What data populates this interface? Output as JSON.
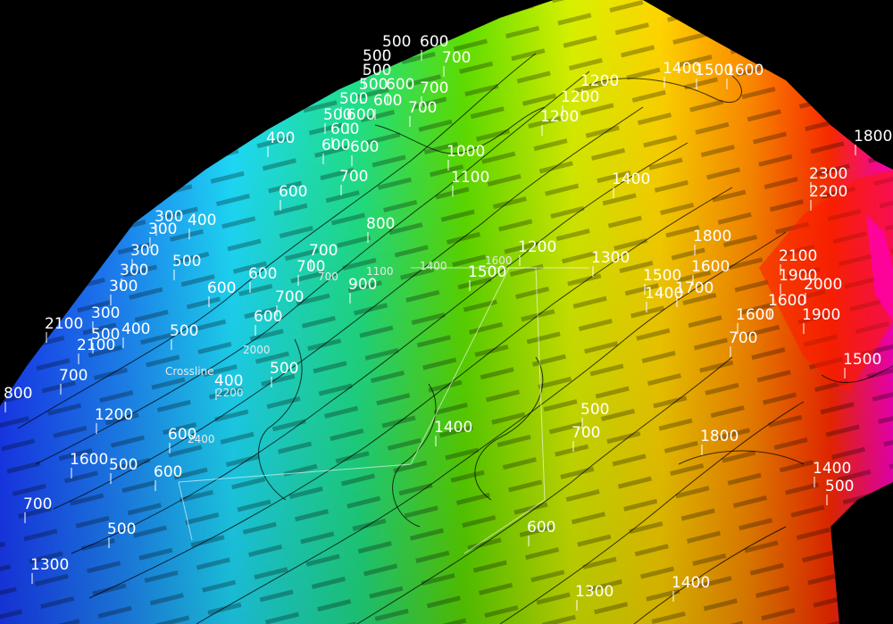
{
  "scene": {
    "contour_labels": [
      "500",
      "600",
      "700",
      "500",
      "500",
      "500",
      "600",
      "700",
      "1200",
      "1200",
      "1400",
      "1500",
      "1600",
      "500",
      "600",
      "700",
      "1200",
      "500",
      "600",
      "600",
      "400",
      "600",
      "600",
      "1000",
      "1800",
      "300",
      "400",
      "1100",
      "1400",
      "2300",
      "2200",
      "300",
      "600",
      "700",
      "800",
      "300",
      "500",
      "1800",
      "1200",
      "2100",
      "300",
      "600",
      "700",
      "1300",
      "1600",
      "1900",
      "1500",
      "300",
      "600",
      "700",
      "1500",
      "2000",
      "1400",
      "1700",
      "300",
      "700",
      "900",
      "1600",
      "1600",
      "1900",
      "2100",
      "500",
      "400",
      "500",
      "600",
      "700",
      "1500",
      "2100",
      "500",
      "800",
      "400",
      "700",
      "500",
      "1400",
      "1200",
      "600",
      "700",
      "1400",
      "1800",
      "1600",
      "500",
      "600",
      "700",
      "500",
      "1300",
      "500",
      "600",
      "1300",
      "1400",
      "1300"
    ],
    "small_labels": [
      "1400",
      "1600",
      "1100",
      "700",
      "2000",
      "Crossline",
      "2200",
      "2400"
    ]
  }
}
